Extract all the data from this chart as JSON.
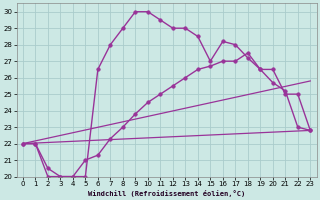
{
  "xlabel": "Windchill (Refroidissement éolien,°C)",
  "background_color": "#cce8e4",
  "grid_color": "#aacccc",
  "line_color": "#993399",
  "xlim": [
    -0.5,
    23.5
  ],
  "ylim": [
    20,
    30.5
  ],
  "yticks": [
    20,
    21,
    22,
    23,
    24,
    25,
    26,
    27,
    28,
    29,
    30
  ],
  "xticks": [
    0,
    1,
    2,
    3,
    4,
    5,
    6,
    7,
    8,
    9,
    10,
    11,
    12,
    13,
    14,
    15,
    16,
    17,
    18,
    19,
    20,
    21,
    22,
    23
  ],
  "series": [
    {
      "x": [
        0,
        1,
        2,
        3,
        4,
        5,
        6,
        7,
        8,
        9,
        10,
        11,
        12,
        13,
        14,
        15,
        16,
        17,
        18,
        19,
        20,
        21,
        22,
        23
      ],
      "y": [
        22,
        22,
        20,
        20,
        20,
        20,
        26.5,
        28,
        29,
        30,
        30,
        29.5,
        29,
        29,
        28.5,
        27,
        28.2,
        28,
        27.2,
        26.5,
        25.7,
        25.2,
        23,
        22.8
      ],
      "with_markers": true,
      "linewidth": 1.0,
      "markersize": 2.5
    },
    {
      "x": [
        0,
        1,
        2,
        3,
        4,
        5,
        6,
        7,
        8,
        9,
        10,
        11,
        12,
        13,
        14,
        15,
        16,
        17,
        18,
        19,
        20,
        21,
        22,
        23
      ],
      "y": [
        22,
        22,
        20.5,
        20,
        20,
        21,
        21.3,
        22.3,
        23,
        23.8,
        24.5,
        25,
        25.5,
        26,
        26.5,
        26.7,
        27,
        27,
        27.5,
        26.5,
        26.5,
        25,
        25,
        22.8
      ],
      "with_markers": true,
      "linewidth": 1.0,
      "markersize": 2.5
    },
    {
      "x": [
        0,
        23
      ],
      "y": [
        22,
        25.8
      ],
      "with_markers": false,
      "linewidth": 0.9,
      "markersize": 0
    },
    {
      "x": [
        0,
        23
      ],
      "y": [
        22,
        22.8
      ],
      "with_markers": false,
      "linewidth": 0.9,
      "markersize": 0
    }
  ]
}
